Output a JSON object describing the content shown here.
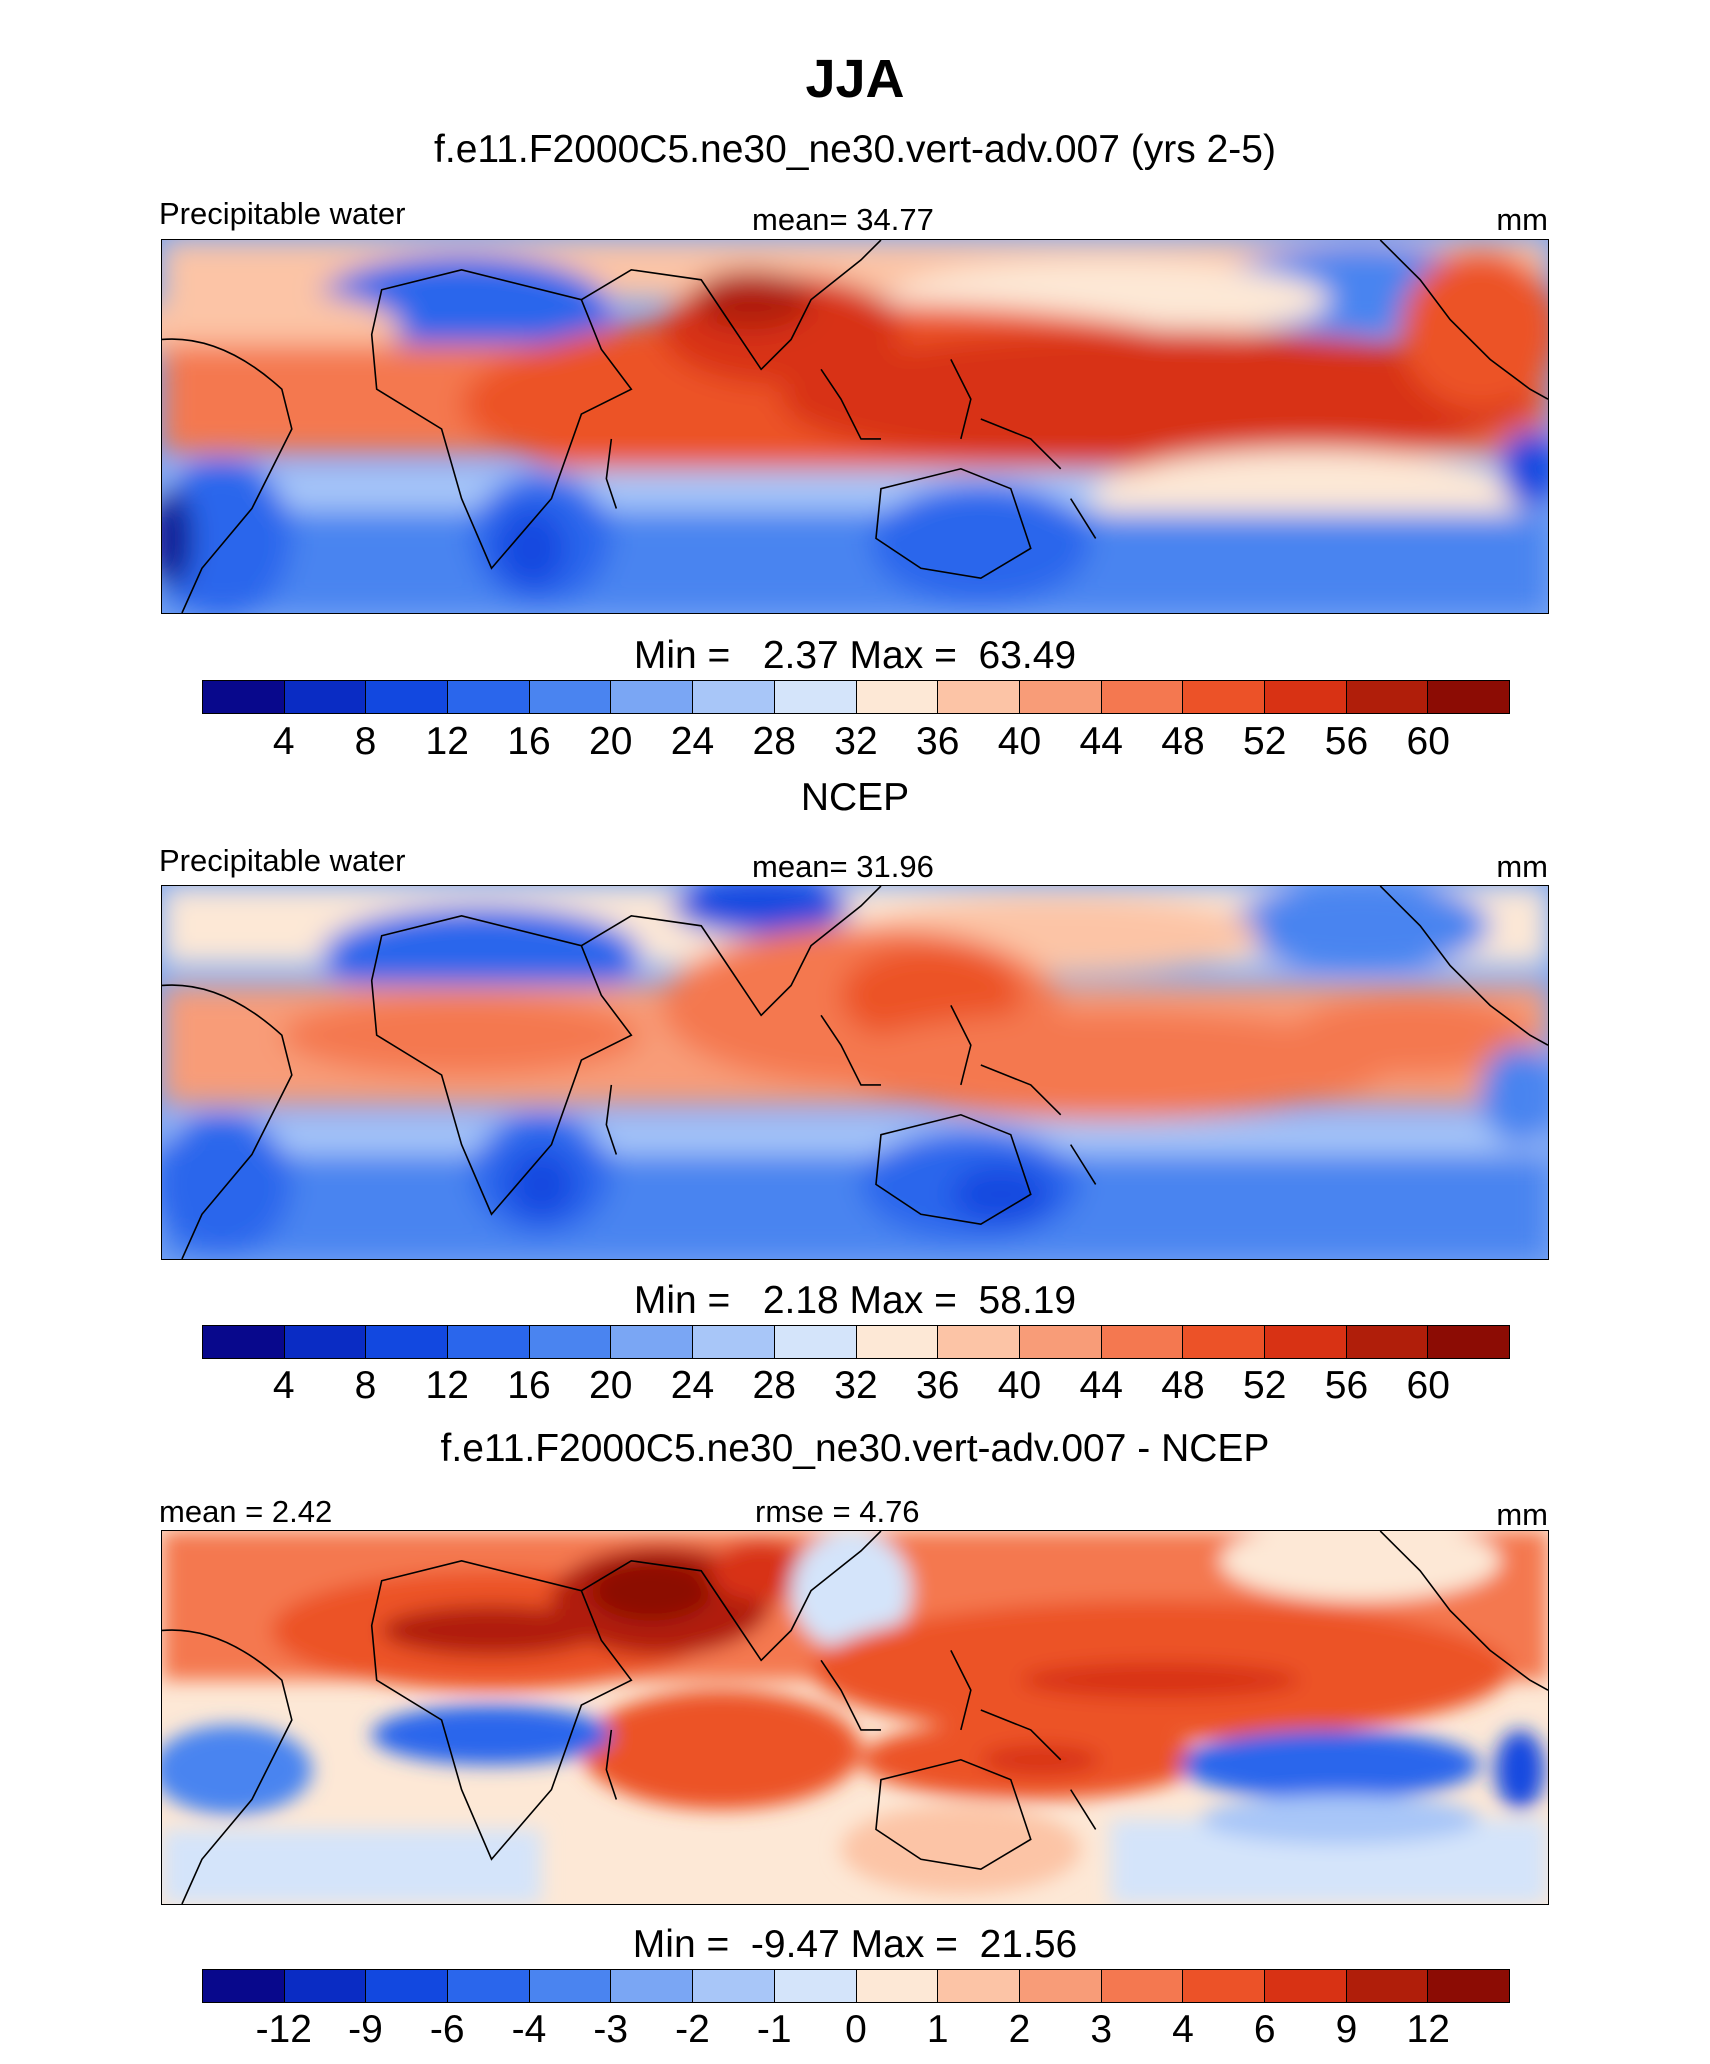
{
  "title": "JJA",
  "palette": [
    "#08088c",
    "#0a2cc4",
    "#1248e0",
    "#2a66ec",
    "#4a84f0",
    "#7aa6f4",
    "#a8c6f8",
    "#d4e4fa",
    "#fde8d6",
    "#fcc4a6",
    "#f89c78",
    "#f47850",
    "#ec5228",
    "#d83214",
    "#b01e0a",
    "#8c0c04"
  ],
  "panels": [
    {
      "title": "f.e11.F2000C5.ne30_ne30.vert-adv.007 (yrs 2-5)",
      "left_label": "Precipitable water",
      "center_label": "mean=  34.77",
      "right_label": "mm",
      "min_max": "Min =   2.37 Max =  63.49",
      "colorbar_ticks": [
        "4",
        "8",
        "12",
        "16",
        "20",
        "24",
        "28",
        "32",
        "36",
        "40",
        "44",
        "48",
        "52",
        "56",
        "60"
      ]
    },
    {
      "title": "NCEP",
      "left_label": "Precipitable water",
      "center_label": "mean=  31.96",
      "right_label": "mm",
      "min_max": "Min =   2.18 Max =  58.19",
      "colorbar_ticks": [
        "4",
        "8",
        "12",
        "16",
        "20",
        "24",
        "28",
        "32",
        "36",
        "40",
        "44",
        "48",
        "52",
        "56",
        "60"
      ]
    },
    {
      "title": "f.e11.F2000C5.ne30_ne30.vert-adv.007 - NCEP",
      "left_label": "mean =   2.42",
      "center_label": "rmse =   4.76",
      "right_label": "mm",
      "min_max": "Min =  -9.47 Max =  21.56",
      "colorbar_ticks": [
        "-12",
        "-9",
        "-6",
        "-4",
        "-3",
        "-2",
        "-1",
        "0",
        "1",
        "2",
        "3",
        "4",
        "6",
        "9",
        "12"
      ]
    }
  ]
}
